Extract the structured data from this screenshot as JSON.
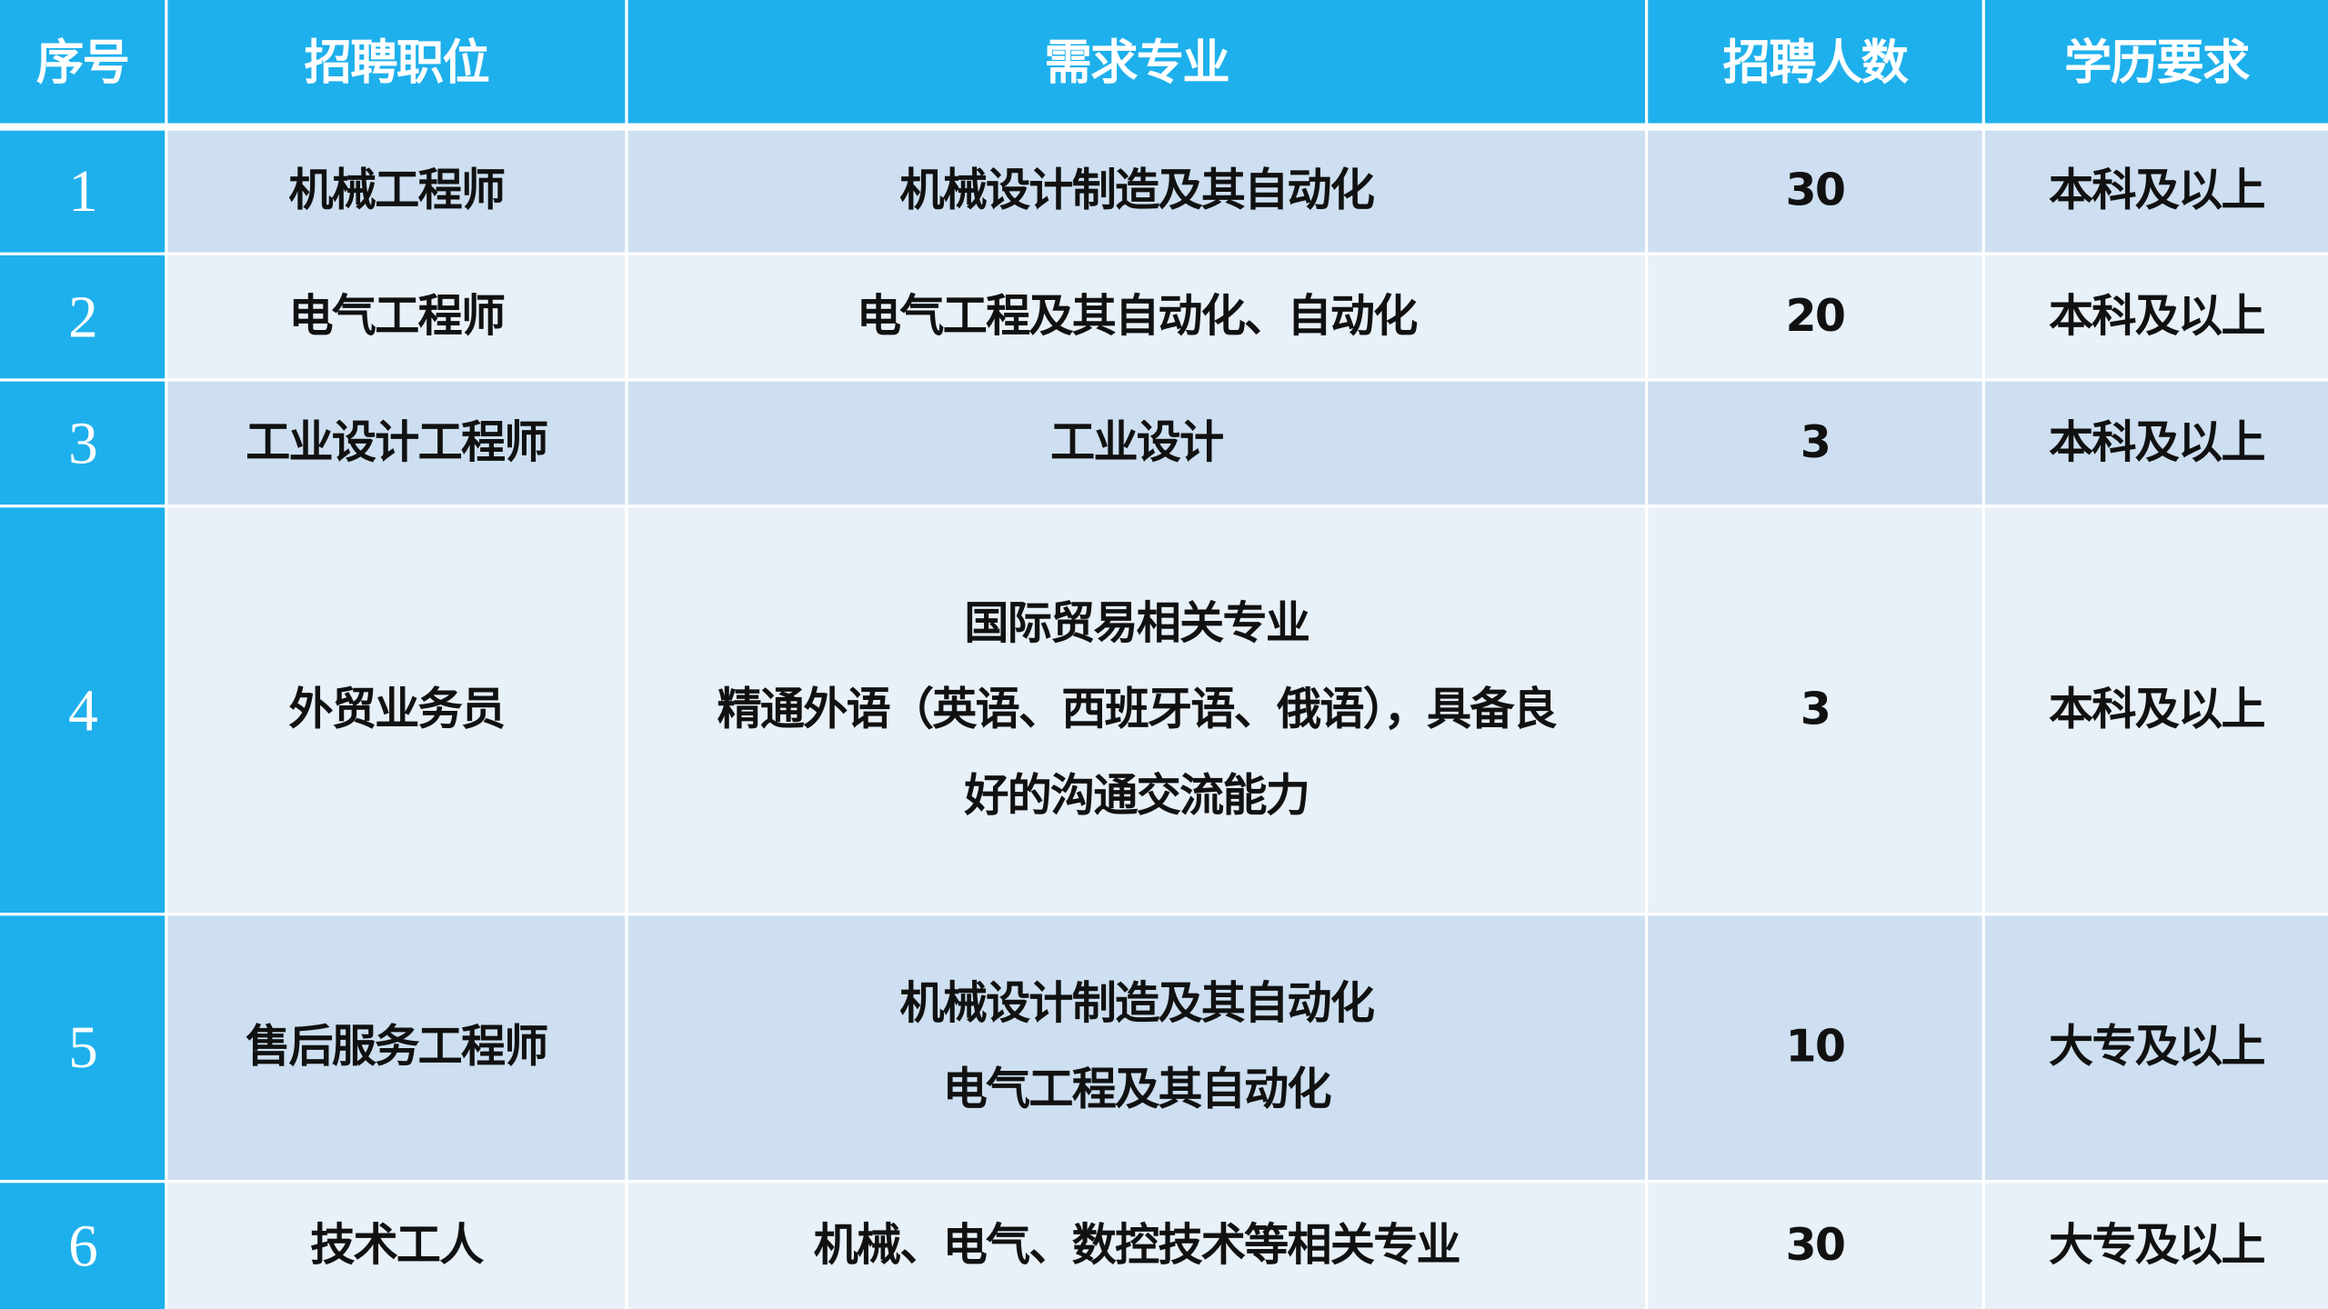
{
  "colors": {
    "header": "#1eb0ec",
    "row_dark": "#cddff0",
    "row_light": "#e8f0f8"
  },
  "headers": [
    "序号",
    "招聘职位",
    "需求专业",
    "招聘人数",
    "学历要求"
  ],
  "rows": [
    {
      "no": "1",
      "position": "机械工程师",
      "major": [
        "机械设计制造及其自动化"
      ],
      "count": "30",
      "education": "本科及以上"
    },
    {
      "no": "2",
      "position": "电气工程师",
      "major": [
        "电气工程及其自动化、自动化"
      ],
      "count": "20",
      "education": "本科及以上"
    },
    {
      "no": "3",
      "position": "工业设计工程师",
      "major": [
        "工业设计"
      ],
      "count": "3",
      "education": "本科及以上"
    },
    {
      "no": "4",
      "position": "外贸业务员",
      "major": [
        "国际贸易相关专业",
        "精通外语（英语、西班牙语、俄语），具备良",
        "好的沟通交流能力"
      ],
      "count": "3",
      "education": "本科及以上"
    },
    {
      "no": "5",
      "position": "售后服务工程师",
      "major": [
        "机械设计制造及其自动化",
        "电气工程及其自动化"
      ],
      "count": "10",
      "education": "大专及以上"
    },
    {
      "no": "6",
      "position": "技术工人",
      "major": [
        "机械、电气、数控技术等相关专业"
      ],
      "count": "30",
      "education": "大专及以上"
    }
  ]
}
